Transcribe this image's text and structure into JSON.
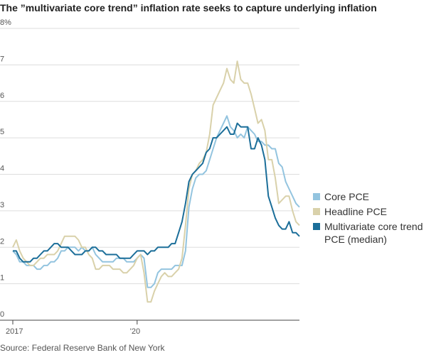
{
  "chart_data": {
    "type": "line",
    "title": "The ”multivariate core trend” inflation rate seeks to capture underlying inflation",
    "source": "Source: Federal Reserve Bank of New York",
    "categories": [
      "2017",
      null,
      null,
      null,
      null,
      null,
      null,
      null,
      null,
      null,
      null,
      null,
      null,
      null,
      null,
      null,
      null,
      null,
      null,
      null,
      null,
      null,
      null,
      null,
      null,
      null,
      null,
      null,
      null,
      null,
      null,
      null,
      null,
      null,
      null,
      null,
      "'20",
      null,
      null,
      null,
      null,
      null,
      null,
      null,
      null,
      null,
      null,
      null,
      null,
      null,
      null,
      null,
      null,
      null,
      null,
      null,
      null,
      null,
      null,
      null,
      null,
      null,
      null,
      null,
      null,
      null,
      null,
      null,
      null,
      null,
      null,
      null,
      null,
      null,
      null,
      null,
      null,
      null,
      null,
      null,
      null,
      null,
      null,
      null
    ],
    "series": [
      {
        "name": "Core PCE",
        "color": "#93c4df",
        "values": [
          1.9,
          1.8,
          1.6,
          1.6,
          1.5,
          1.5,
          1.5,
          1.4,
          1.4,
          1.5,
          1.5,
          1.6,
          1.6,
          1.7,
          1.9,
          1.9,
          2.0,
          2.0,
          2.0,
          1.9,
          2.0,
          1.9,
          1.9,
          2.0,
          1.8,
          1.7,
          1.6,
          1.6,
          1.6,
          1.6,
          1.7,
          1.7,
          1.7,
          1.6,
          1.6,
          1.6,
          1.7,
          1.8,
          1.7,
          0.9,
          0.9,
          1.0,
          1.3,
          1.4,
          1.4,
          1.4,
          1.4,
          1.5,
          1.5,
          1.5,
          1.9,
          3.1,
          3.6,
          3.9,
          4.0,
          4.0,
          4.1,
          4.4,
          4.7,
          5.0,
          5.2,
          5.4,
          5.6,
          5.3,
          5.2,
          5.0,
          5.1,
          5.0,
          5.3,
          5.2,
          5.1,
          4.9,
          4.9,
          4.8,
          4.8,
          4.7,
          4.7,
          4.3,
          4.2,
          3.8,
          3.6,
          3.4,
          3.2,
          3.1
        ]
      },
      {
        "name": "Headline PCE",
        "color": "#d9d1aa",
        "values": [
          2.0,
          2.2,
          1.9,
          1.7,
          1.6,
          1.5,
          1.5,
          1.6,
          1.7,
          1.7,
          1.8,
          1.8,
          1.8,
          1.9,
          2.1,
          2.3,
          2.3,
          2.3,
          2.3,
          2.2,
          2.0,
          2.0,
          1.8,
          1.7,
          1.4,
          1.4,
          1.5,
          1.5,
          1.5,
          1.4,
          1.4,
          1.4,
          1.3,
          1.3,
          1.4,
          1.5,
          1.7,
          1.8,
          1.3,
          0.5,
          0.5,
          0.8,
          1.0,
          1.2,
          1.3,
          1.2,
          1.2,
          1.3,
          1.4,
          1.7,
          2.6,
          3.6,
          4.0,
          4.1,
          4.3,
          4.4,
          4.6,
          5.1,
          5.9,
          6.1,
          6.3,
          6.5,
          6.9,
          6.6,
          6.5,
          7.1,
          6.6,
          6.5,
          6.5,
          6.2,
          5.8,
          5.4,
          5.5,
          5.2,
          4.4,
          4.4,
          3.9,
          3.2,
          3.3,
          3.4,
          3.4,
          3.0,
          2.7,
          2.6
        ]
      },
      {
        "name": "Multivariate core trend PCE (median)",
        "color": "#1b6e99",
        "values": [
          1.9,
          1.9,
          1.7,
          1.6,
          1.6,
          1.6,
          1.7,
          1.7,
          1.8,
          1.9,
          1.9,
          2.0,
          2.1,
          2.1,
          2.0,
          2.0,
          2.0,
          1.9,
          1.8,
          1.8,
          1.8,
          1.9,
          1.9,
          2.0,
          2.0,
          1.9,
          1.9,
          1.8,
          1.8,
          1.8,
          1.8,
          1.7,
          1.7,
          1.7,
          1.7,
          1.8,
          1.9,
          1.9,
          1.9,
          1.8,
          1.9,
          1.9,
          2.0,
          2.0,
          2.0,
          2.0,
          2.1,
          2.1,
          2.4,
          2.7,
          3.2,
          3.8,
          4.0,
          4.1,
          4.2,
          4.3,
          4.6,
          4.7,
          5.0,
          5.0,
          5.1,
          5.2,
          5.3,
          5.1,
          5.1,
          5.4,
          5.3,
          5.3,
          5.3,
          4.7,
          4.7,
          5.0,
          4.8,
          4.4,
          3.4,
          3.1,
          2.8,
          2.6,
          2.5,
          2.5,
          2.7,
          2.4,
          2.4,
          2.3
        ]
      }
    ],
    "ylim": [
      0,
      8
    ],
    "yticks": [
      0,
      1,
      2,
      3,
      4,
      5,
      6,
      7,
      {
        "value": 8,
        "label": "8%"
      }
    ],
    "grid": true
  }
}
